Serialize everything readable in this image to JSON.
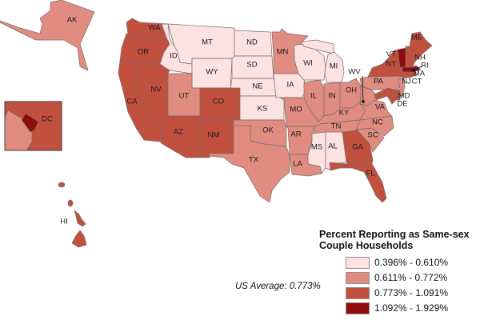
{
  "legend": {
    "title_line1": "Percent Reporting as Same-sex",
    "title_line2": "Couple Households",
    "classes": [
      {
        "label": "0.396% - 0.610%",
        "color": "#fde2e2"
      },
      {
        "label": "0.611% - 0.772%",
        "color": "#e08c80"
      },
      {
        "label": "0.773% - 1.091%",
        "color": "#c2503f"
      },
      {
        "label": "1.092% - 1.929%",
        "color": "#900c0c"
      }
    ]
  },
  "us_average": "US Average: 0.773%",
  "states": {
    "AK": {
      "label": "AK",
      "class": 1
    },
    "HI": {
      "label": "HI",
      "class": 2
    },
    "DC": {
      "label": "DC",
      "class": 3
    },
    "WA": {
      "label": "WA",
      "class": 2
    },
    "OR": {
      "label": "OR",
      "class": 2
    },
    "CA": {
      "label": "CA",
      "class": 2
    },
    "NV": {
      "label": "NV",
      "class": 2
    },
    "ID": {
      "label": "ID",
      "class": 0
    },
    "MT": {
      "label": "MT",
      "class": 0
    },
    "WY": {
      "label": "WY",
      "class": 0
    },
    "UT": {
      "label": "UT",
      "class": 1
    },
    "CO": {
      "label": "CO",
      "class": 2
    },
    "AZ": {
      "label": "AZ",
      "class": 2
    },
    "NM": {
      "label": "NM",
      "class": 2
    },
    "ND": {
      "label": "ND",
      "class": 0
    },
    "SD": {
      "label": "SD",
      "class": 0
    },
    "NE": {
      "label": "NE",
      "class": 0
    },
    "KS": {
      "label": "KS",
      "class": 0
    },
    "OK": {
      "label": "OK",
      "class": 1
    },
    "TX": {
      "label": "TX",
      "class": 1
    },
    "MN": {
      "label": "MN",
      "class": 1
    },
    "IA": {
      "label": "IA",
      "class": 0
    },
    "MO": {
      "label": "MO",
      "class": 1
    },
    "AR": {
      "label": "AR",
      "class": 1
    },
    "LA": {
      "label": "LA",
      "class": 1
    },
    "WI": {
      "label": "WI",
      "class": 0
    },
    "MI": {
      "label": "MI",
      "class": 0
    },
    "IL": {
      "label": "IL",
      "class": 1
    },
    "IN": {
      "label": "IN",
      "class": 1
    },
    "OH": {
      "label": "OH",
      "class": 1
    },
    "KY": {
      "label": "KY",
      "class": 1
    },
    "TN": {
      "label": "TN",
      "class": 1
    },
    "MS": {
      "label": "MS",
      "class": 0
    },
    "AL": {
      "label": "AL",
      "class": 0
    },
    "GA": {
      "label": "GA",
      "class": 2
    },
    "FL": {
      "label": "FL",
      "class": 2
    },
    "SC": {
      "label": "SC",
      "class": 1
    },
    "NC": {
      "label": "NC",
      "class": 1
    },
    "VA": {
      "label": "VA",
      "class": 1
    },
    "WV": {
      "label": "WV",
      "class": 1
    },
    "PA": {
      "label": "PA",
      "class": 1
    },
    "NY": {
      "label": "NY",
      "class": 2
    },
    "VT": {
      "label": "VT",
      "class": 3
    },
    "NH": {
      "label": "NH",
      "class": 2
    },
    "ME": {
      "label": "ME",
      "class": 2
    },
    "MA": {
      "label": "MA",
      "class": 3
    },
    "RI": {
      "label": "RI",
      "class": 2
    },
    "CT": {
      "label": "CT",
      "class": 2
    },
    "NJ": {
      "label": "NJ",
      "class": 1
    },
    "DE": {
      "label": "DE",
      "class": 2
    },
    "MD": {
      "label": "MD",
      "class": 2
    }
  }
}
